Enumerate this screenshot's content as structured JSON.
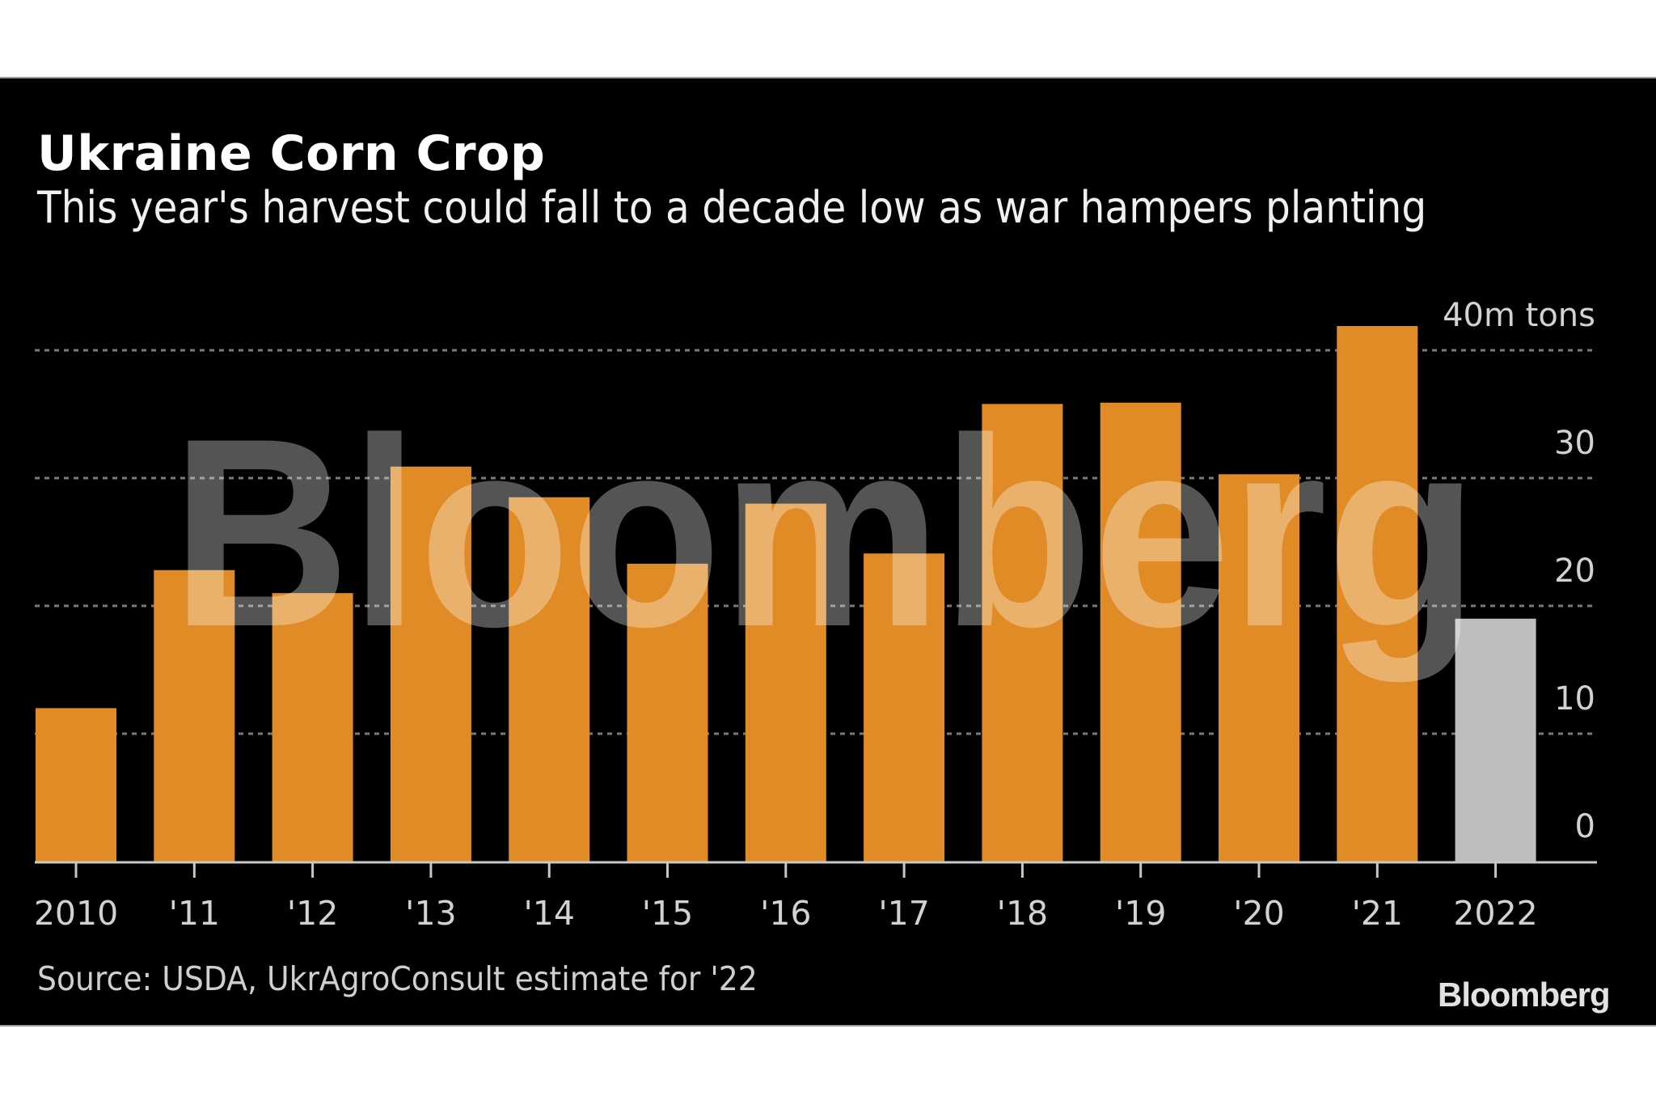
{
  "header": {
    "title": "Ukraine Corn Crop",
    "subtitle": "This year's harvest could fall to a decade low as war hampers planting"
  },
  "footer": {
    "source": "Source: USDA, UkrAgroConsult estimate for '22",
    "logo": "Bloomberg"
  },
  "watermark": "Bloomberg",
  "colors": {
    "actual": "#E08B26",
    "estimate": "#BEBEBE",
    "grid": "#7a7a7a",
    "axis": "#c8c8c8",
    "label": "#d2d2d2"
  },
  "chart_data": {
    "type": "bar",
    "title": "Ukraine Corn Crop",
    "subtitle": "This year's harvest could fall to a decade low as war hampers planting",
    "xlabel": "",
    "ylabel": "m tons",
    "unit_label": "40m tons",
    "categories": [
      "2010",
      "'11",
      "'12",
      "'13",
      "'14",
      "'15",
      "'16",
      "'17",
      "'18",
      "'19",
      "'20",
      "'21",
      "2022"
    ],
    "values": [
      12.0,
      22.8,
      21.0,
      30.9,
      28.5,
      23.3,
      28.0,
      24.1,
      35.8,
      35.9,
      30.3,
      41.9,
      19.0
    ],
    "estimate_flags": [
      false,
      false,
      false,
      false,
      false,
      false,
      false,
      false,
      false,
      false,
      false,
      false,
      true
    ],
    "ylim": [
      0,
      40
    ],
    "yticks": [
      0,
      10,
      20,
      30,
      40
    ],
    "ytick_labels": [
      "0",
      "10",
      "20",
      "30",
      "40m tons"
    ],
    "grid": true,
    "y_axis_position": "right",
    "source": "Source: USDA, UkrAgroConsult estimate for '22"
  }
}
